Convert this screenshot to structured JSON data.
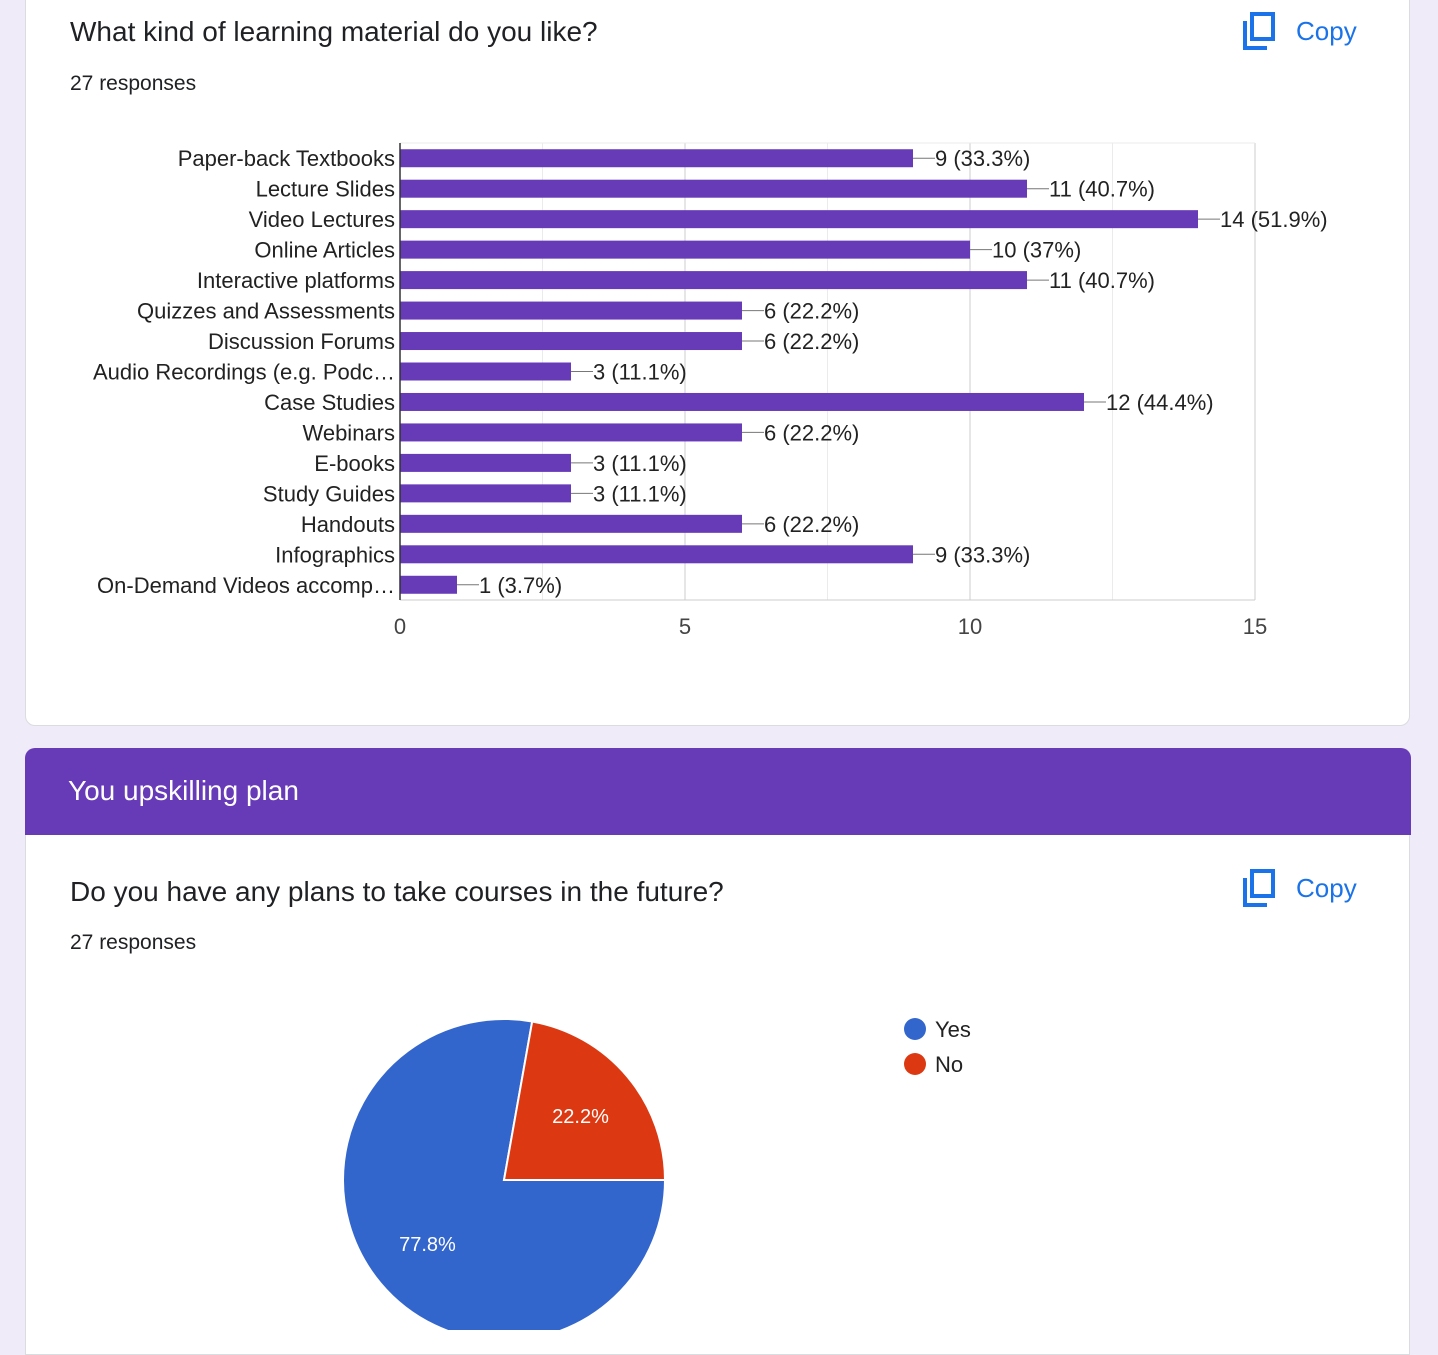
{
  "question1": {
    "title": "What kind of learning material do you like?",
    "responses": "27 responses",
    "copy_label": "Copy"
  },
  "section": {
    "title": "You upskilling plan"
  },
  "question2": {
    "title": "Do you have any plans to take courses in the future?",
    "responses": "27 responses",
    "copy_label": "Copy"
  },
  "colors": {
    "bar": "#673ab7",
    "yes": "#3366cc",
    "no": "#dc3912",
    "accent": "#1a73e8"
  },
  "chart_data": [
    {
      "type": "bar",
      "orientation": "horizontal",
      "categories": [
        "Paper-back Textbooks",
        "Lecture Slides",
        "Video Lectures",
        "Online Articles",
        "Interactive platforms",
        "Quizzes and Assessments",
        "Discussion Forums",
        "Audio Recordings (e.g. Podc…",
        "Case Studies",
        "Webinars",
        "E-books",
        "Study Guides",
        "Handouts",
        "Infographics",
        "On-Demand Videos accomp…"
      ],
      "values": [
        9,
        11,
        14,
        10,
        11,
        6,
        6,
        3,
        12,
        6,
        3,
        3,
        6,
        9,
        1
      ],
      "data_labels": [
        "9 (33.3%)",
        "11 (40.7%)",
        "14 (51.9%)",
        "10 (37%)",
        "11 (40.7%)",
        "6 (22.2%)",
        "6 (22.2%)",
        "3 (11.1%)",
        "12 (44.4%)",
        "6 (22.2%)",
        "3 (11.1%)",
        "3 (11.1%)",
        "6 (22.2%)",
        "9 (33.3%)",
        "1 (3.7%)"
      ],
      "xlim": [
        0,
        15
      ],
      "xticks": [
        0,
        5,
        10,
        15
      ],
      "grid": true
    },
    {
      "type": "pie",
      "labels": [
        "Yes",
        "No"
      ],
      "values": [
        77.8,
        22.2
      ],
      "data_labels": [
        "77.8%",
        "22.2%"
      ],
      "legend": "right"
    }
  ]
}
